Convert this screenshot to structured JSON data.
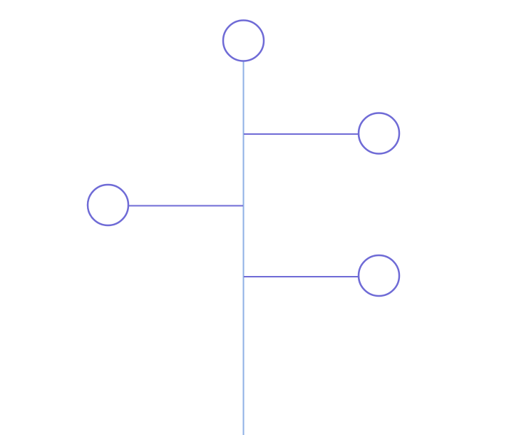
{
  "diagram": {
    "kind": "timeline-tree",
    "colors": {
      "trunk": "#8fb0e6",
      "branch": "#6f6bd6",
      "node_stroke": "#6f6bd6",
      "node_fill": "#ffffff",
      "background": "#ffffff"
    },
    "nodes": [
      {
        "id": "root",
        "label": ""
      },
      {
        "id": "branch-1",
        "label": ""
      },
      {
        "id": "branch-2",
        "label": ""
      },
      {
        "id": "branch-3",
        "label": ""
      }
    ]
  }
}
